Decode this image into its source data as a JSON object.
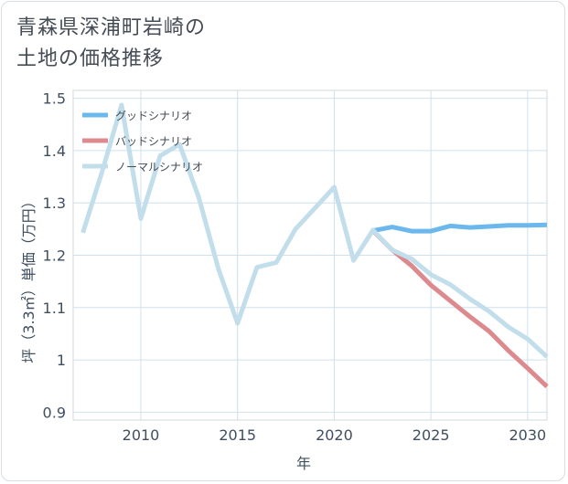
{
  "page": {
    "title_line1": "青森県深浦町岩崎の",
    "title_line2": "土地の価格推移"
  },
  "chart_data": {
    "type": "line",
    "title": "青森県深浦町岩崎の土地の価格推移",
    "xlabel": "年",
    "ylabel": "坪（3.3㎡）単価（万円）",
    "xlim": [
      2006.5,
      2031
    ],
    "ylim": [
      0.885,
      1.515
    ],
    "xticks": [
      2010,
      2015,
      2020,
      2025,
      2030
    ],
    "yticks": [
      0.9,
      1,
      1.1,
      1.2,
      1.3,
      1.4,
      1.5
    ],
    "ytick_labels": [
      "0.9",
      "1",
      "1.1",
      "1.2",
      "1.3",
      "1.4",
      "1.5"
    ],
    "legend_position": "top-left",
    "series": [
      {
        "name": "グッドシナリオ",
        "color": "#6cb8ec",
        "x": [
          2022,
          2023,
          2024,
          2025,
          2026,
          2027,
          2028,
          2029,
          2030,
          2031
        ],
        "y": [
          1.247,
          1.254,
          1.246,
          1.246,
          1.256,
          1.253,
          1.255,
          1.257,
          1.257,
          1.258
        ]
      },
      {
        "name": "バッドシナリオ",
        "color": "#dd8a8f",
        "x": [
          2022,
          2023,
          2024,
          2025,
          2026,
          2027,
          2028,
          2029,
          2030,
          2031
        ],
        "y": [
          1.247,
          1.21,
          1.18,
          1.143,
          1.113,
          1.083,
          1.055,
          1.018,
          0.984,
          0.949
        ]
      },
      {
        "name": "ノーマルシナリオ",
        "color": "#c2deeb",
        "x": [
          2007,
          2008,
          2009,
          2010,
          2011,
          2012,
          2013,
          2014,
          2015,
          2016,
          2017,
          2018,
          2019,
          2020,
          2021,
          2022,
          2023,
          2024,
          2025,
          2026,
          2027,
          2028,
          2029,
          2030,
          2031
        ],
        "y": [
          1.243,
          1.36,
          1.487,
          1.27,
          1.39,
          1.412,
          1.31,
          1.175,
          1.07,
          1.177,
          1.186,
          1.25,
          1.29,
          1.33,
          1.19,
          1.248,
          1.21,
          1.193,
          1.163,
          1.144,
          1.117,
          1.093,
          1.063,
          1.04,
          1.006
        ]
      }
    ]
  }
}
